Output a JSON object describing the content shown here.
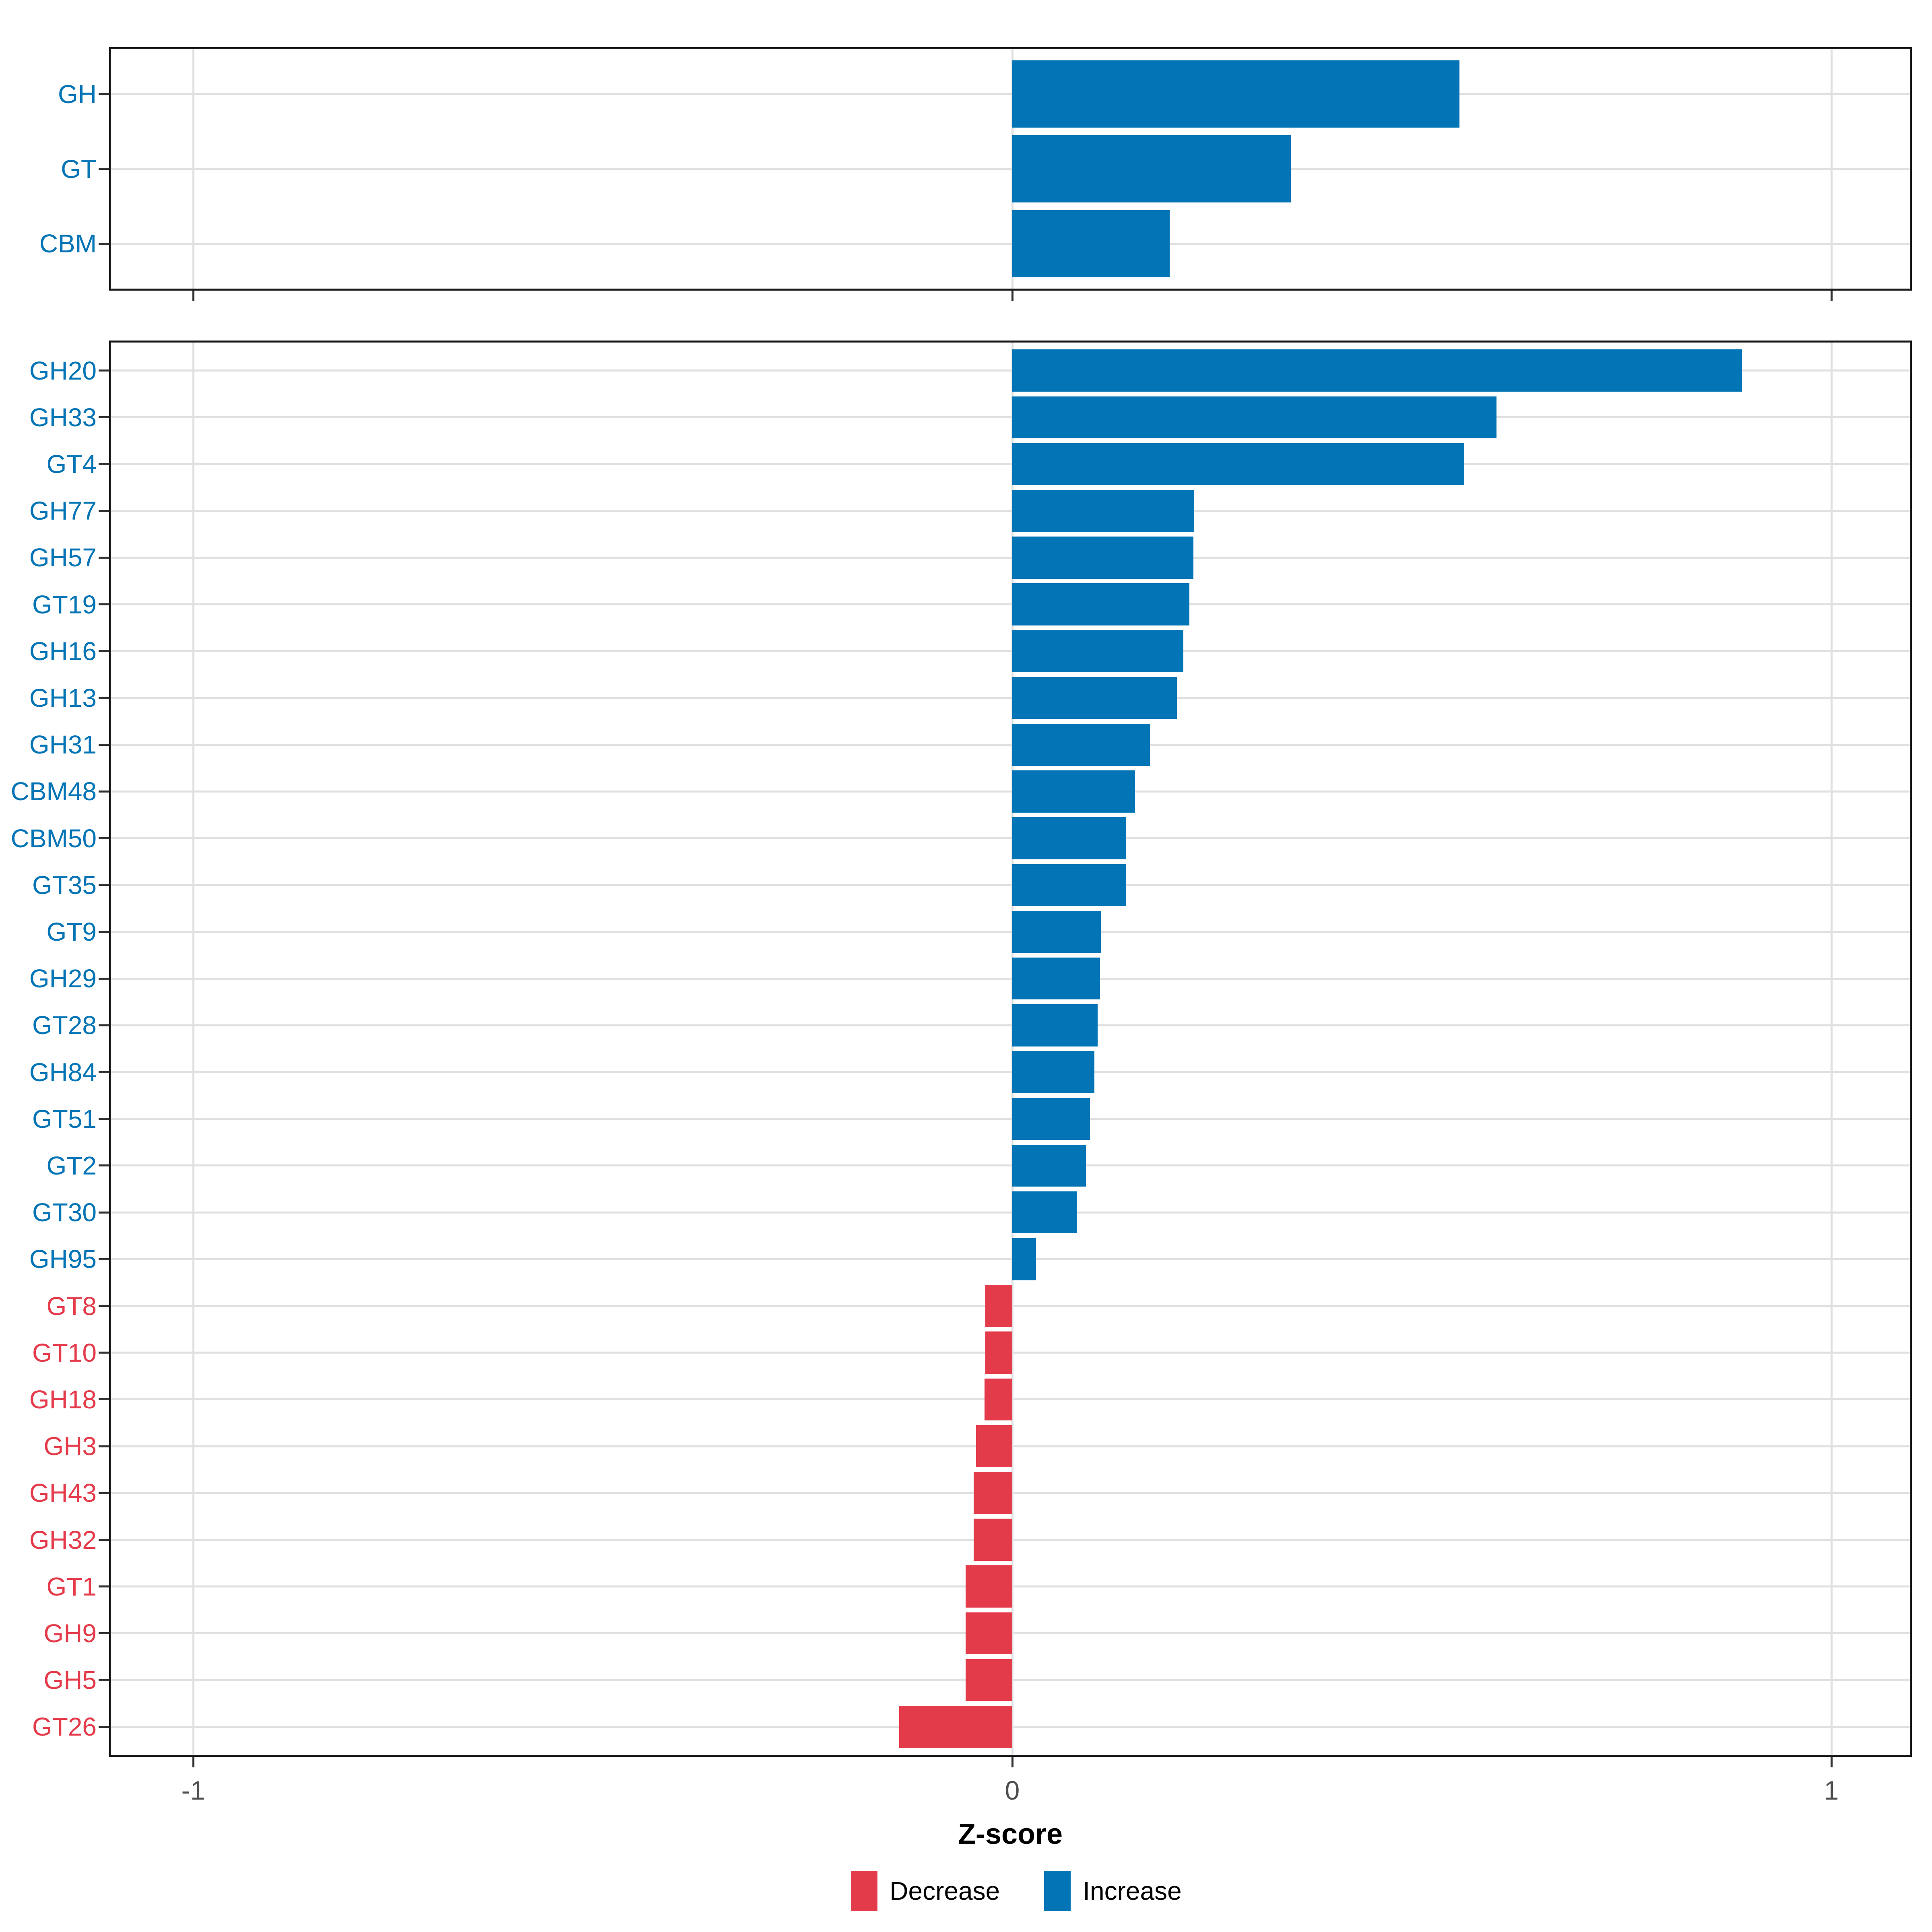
{
  "chart_data": {
    "type": "bar",
    "orientation": "horizontal",
    "xlabel": "Z-score",
    "x_ticks": [
      -1,
      0,
      1
    ],
    "xlim": [
      -1.1,
      1.1
    ],
    "grid": true,
    "legend_position": "bottom",
    "colors": {
      "increase": "#0374b5",
      "decrease": "#e43b4b"
    },
    "legend": [
      {
        "key": "decrease",
        "label": "Decrease",
        "color": "#e43b4b"
      },
      {
        "key": "increase",
        "label": "Increase",
        "color": "#0374b5"
      }
    ],
    "panels": [
      {
        "name": "cazyme-class",
        "categories": [
          "GH",
          "GT",
          "CBM"
        ],
        "values": [
          0.546,
          0.34,
          0.192
        ]
      },
      {
        "name": "cazyme-family",
        "categories": [
          "GH20",
          "GH33",
          "GT4",
          "GH77",
          "GH57",
          "GT19",
          "GH16",
          "GH13",
          "GH31",
          "CBM48",
          "CBM50",
          "GT35",
          "GT9",
          "GH29",
          "GT28",
          "GH84",
          "GT51",
          "GT2",
          "GT30",
          "GH95",
          "GT8",
          "GT10",
          "GH18",
          "GH3",
          "GH43",
          "GH32",
          "GT1",
          "GH9",
          "GH5",
          "GT26"
        ],
        "values": [
          0.891,
          0.591,
          0.552,
          0.222,
          0.221,
          0.216,
          0.209,
          0.201,
          0.168,
          0.15,
          0.139,
          0.139,
          0.108,
          0.107,
          0.104,
          0.1,
          0.095,
          0.09,
          0.079,
          0.029,
          -0.033,
          -0.033,
          -0.034,
          -0.044,
          -0.047,
          -0.047,
          -0.057,
          -0.057,
          -0.057,
          -0.138
        ]
      }
    ]
  }
}
